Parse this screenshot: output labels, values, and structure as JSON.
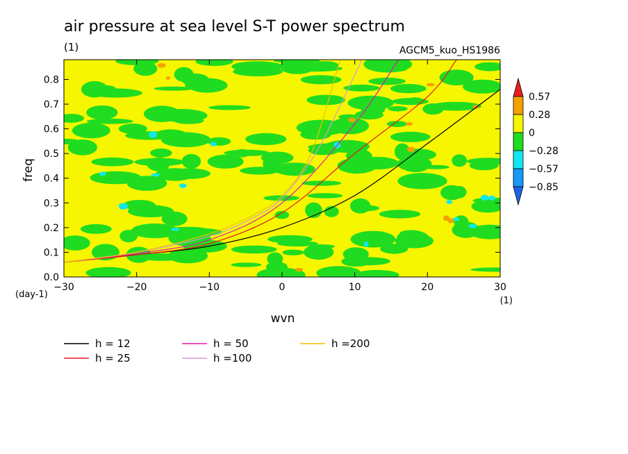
{
  "chart_data": {
    "type": "heatmap",
    "title": "air pressure at sea level S-T power spectrum",
    "subtitle": "(1)",
    "model_label": "AGCM5_kuo_HS1986",
    "xlabel": "wvn",
    "ylabel": "freq",
    "x_unit": "(1)",
    "y_unit": "(day-1)",
    "xlim": [
      -30,
      30
    ],
    "ylim": [
      0,
      0.88
    ],
    "x_ticks": [
      {
        "value": -30,
        "label": "−30"
      },
      {
        "value": -20,
        "label": "−20"
      },
      {
        "value": -10,
        "label": "−10"
      },
      {
        "value": 0,
        "label": "0"
      },
      {
        "value": 10,
        "label": "10"
      },
      {
        "value": 20,
        "label": "20"
      },
      {
        "value": 30,
        "label": "30"
      }
    ],
    "y_ticks": [
      {
        "value": 0,
        "label": "0.0"
      },
      {
        "value": 0.1,
        "label": "0.1"
      },
      {
        "value": 0.2,
        "label": "0.2"
      },
      {
        "value": 0.3,
        "label": "0.3"
      },
      {
        "value": 0.4,
        "label": "0.4"
      },
      {
        "value": 0.5,
        "label": "0.5"
      },
      {
        "value": 0.6,
        "label": "0.6"
      },
      {
        "value": 0.7,
        "label": "0.7"
      },
      {
        "value": 0.8,
        "label": "0.8"
      }
    ],
    "colorbar": {
      "levels": [
        {
          "value": 0.57,
          "label": "0.57"
        },
        {
          "value": 0.28,
          "label": "0.28"
        },
        {
          "value": 0,
          "label": "0"
        },
        {
          "value": -0.28,
          "label": "−0.28"
        },
        {
          "value": -0.57,
          "label": "−0.57"
        },
        {
          "value": -0.85,
          "label": "−0.85"
        }
      ],
      "colors_top_to_bottom": [
        "#e8201c",
        "#f4a000",
        "#f6f600",
        "#20dc20",
        "#10e8f0",
        "#1898f8",
        "#1c64e8"
      ]
    },
    "field_background_colors": {
      "positive": "#f6f600",
      "negative": "#20dc20",
      "strong_positive": "#f4a000",
      "strong_negative": "#10e8f0"
    },
    "dispersion_curves": [
      {
        "name": "h = 12",
        "h": 12,
        "color": "#000000"
      },
      {
        "name": "h = 25",
        "h": 25,
        "color": "#e81818"
      },
      {
        "name": "h = 50",
        "h": 50,
        "color": "#e018a8"
      },
      {
        "name": "h =100",
        "h": 100,
        "color": "#d898d8"
      },
      {
        "name": "h =200",
        "h": 200,
        "color": "#f0c000"
      }
    ],
    "curve_points_by_h": {
      "12": [
        [
          -30,
          0.06
        ],
        [
          -20,
          0.09
        ],
        [
          -10,
          0.125
        ],
        [
          0,
          0.2
        ],
        [
          10,
          0.33
        ],
        [
          20,
          0.54
        ],
        [
          30,
          0.76
        ]
      ],
      "25": [
        [
          -30,
          0.06
        ],
        [
          -20,
          0.09
        ],
        [
          -10,
          0.135
        ],
        [
          0,
          0.26
        ],
        [
          10,
          0.5
        ],
        [
          20,
          0.73
        ],
        [
          24,
          0.88
        ]
      ],
      "50": [
        [
          -30,
          0.06
        ],
        [
          -20,
          0.095
        ],
        [
          -10,
          0.15
        ],
        [
          0,
          0.3
        ],
        [
          10,
          0.62
        ],
        [
          16,
          0.88
        ]
      ],
      "100": [
        [
          -30,
          0.06
        ],
        [
          -20,
          0.1
        ],
        [
          -10,
          0.165
        ],
        [
          -4,
          0.24
        ],
        [
          0,
          0.32
        ],
        [
          5,
          0.52
        ],
        [
          11,
          0.88
        ]
      ],
      "200": [
        [
          -30,
          0.06
        ],
        [
          -20,
          0.1
        ],
        [
          -10,
          0.175
        ],
        [
          -4,
          0.25
        ],
        [
          0,
          0.33
        ],
        [
          4,
          0.5
        ],
        [
          8,
          0.88
        ]
      ]
    },
    "grid": false,
    "legend_position": "bottom-left"
  }
}
